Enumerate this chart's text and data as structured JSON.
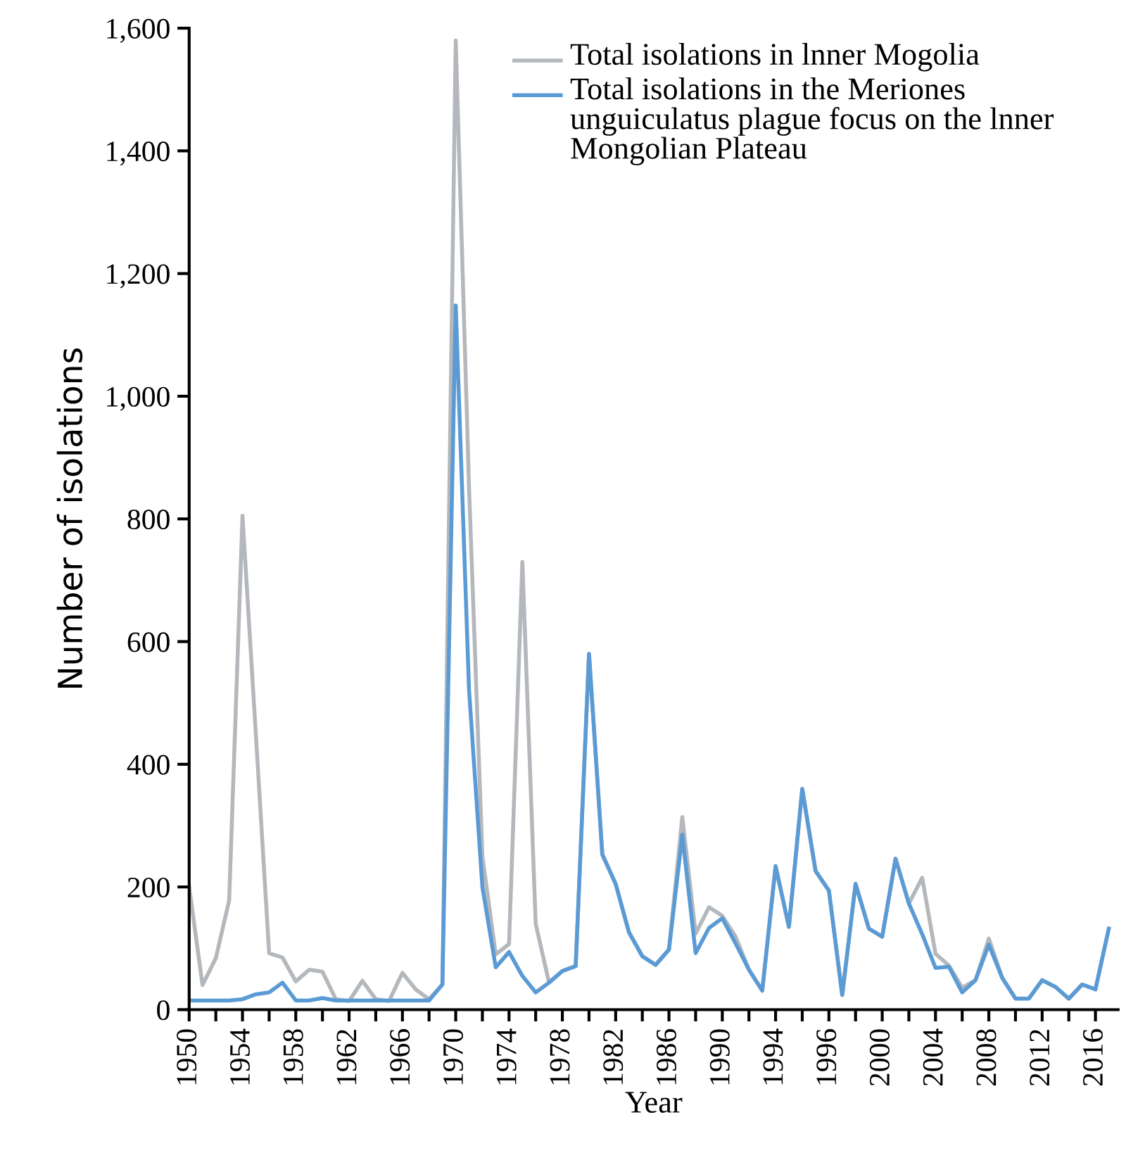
{
  "chart_data": {
    "type": "line",
    "xlabel": "Year",
    "ylabel": "Number of isolations",
    "categories": [
      "1950",
      null,
      null,
      null,
      "1954",
      null,
      null,
      null,
      "1958",
      null,
      null,
      null,
      "1962",
      null,
      null,
      null,
      "1966",
      null,
      null,
      null,
      "1970",
      null,
      null,
      null,
      "1974",
      null,
      null,
      null,
      "1978",
      null,
      null,
      null,
      "1982",
      null,
      null,
      null,
      "1986",
      null,
      null,
      null,
      "1990",
      null,
      null,
      null,
      "1994",
      null,
      null,
      null,
      "1996",
      null,
      null,
      null,
      "2000",
      null,
      null,
      null,
      "2004",
      null,
      null,
      null,
      "2008",
      null,
      null,
      null,
      "2012",
      null,
      null,
      null,
      "2016",
      null
    ],
    "series": [
      {
        "name": "Total isolations in lnner Mogolia",
        "color": "#b4b8bc",
        "values": [
          200,
          40,
          84,
          178,
          805,
          450,
          92,
          85,
          46,
          65,
          62,
          17,
          14,
          47,
          17,
          14,
          60,
          33,
          17,
          41,
          1580,
          850,
          250,
          90,
          107,
          730,
          140,
          44,
          63,
          71,
          580,
          253,
          205,
          126,
          87,
          73,
          98,
          314,
          124,
          167,
          153,
          119,
          65,
          31,
          234,
          135,
          360,
          226,
          194,
          24,
          205,
          132,
          119,
          246,
          173,
          215,
          91,
          72,
          36,
          48,
          116,
          52,
          18,
          18,
          48,
          37,
          18,
          41,
          33,
          132
        ]
      },
      {
        "name": "Total isolations in the Meriones unguiculatus plague focus on the lnner Mongolian Plateau",
        "color": "#5b9bd5",
        "values": [
          15,
          15,
          15,
          15,
          17,
          25,
          28,
          44,
          15,
          15,
          19,
          15,
          15,
          15,
          15,
          15,
          15,
          15,
          15,
          41,
          1148,
          521,
          200,
          69,
          94,
          55,
          28,
          44,
          63,
          71,
          580,
          253,
          205,
          126,
          87,
          73,
          98,
          285,
          92,
          133,
          149,
          108,
          65,
          31,
          234,
          135,
          360,
          226,
          194,
          24,
          205,
          132,
          119,
          246,
          173,
          123,
          68,
          70,
          28,
          48,
          106,
          52,
          18,
          18,
          48,
          37,
          18,
          41,
          33,
          132
        ]
      }
    ],
    "ylim": [
      0,
      1600
    ],
    "yticks": [
      0,
      200,
      400,
      600,
      800,
      {
        "value": 1000,
        "label": "1,000"
      },
      {
        "value": 1200,
        "label": "1,200"
      },
      {
        "value": 1400,
        "label": "1,400"
      },
      {
        "value": 1600,
        "label": "1,600"
      }
    ],
    "grid": false,
    "legend": "top right",
    "marker": "none",
    "line_style": "solid"
  }
}
